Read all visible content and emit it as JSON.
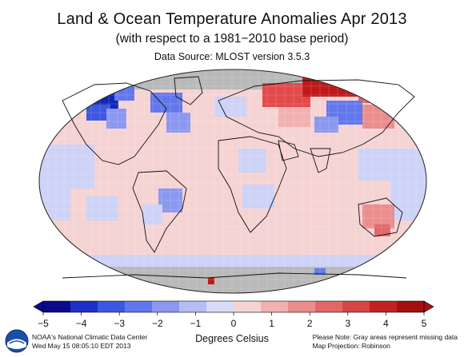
{
  "title": "Land & Ocean Temperature Anomalies Apr 2013",
  "subtitle": "(with respect to a 1981−2010 base period)",
  "source": "Data Source: MLOST version 3.5.3",
  "colorbar": {
    "ticks": [
      "−5",
      "−4",
      "−3",
      "−2",
      "−1",
      "0",
      "1",
      "2",
      "3",
      "4",
      "5"
    ],
    "axis_label": "Degrees Celsius",
    "colors": [
      "#0a0a8a",
      "#1f2fc8",
      "#3d57e0",
      "#6377ec",
      "#8b98f0",
      "#b6bdf4",
      "#d8dcf8",
      "#f7d4d4",
      "#f2b0b0",
      "#eb8d8d",
      "#e26868",
      "#d64545",
      "#c42222",
      "#a50f0f"
    ]
  },
  "footer": {
    "org": "NOAA's National Climatic Data Center",
    "date": "Wed May 15 08:05:10 EDT 2013",
    "note": "Please Note: Gray areas represent missing data",
    "projection": "Map Projection: Robinson"
  },
  "logo_text": "NOAA",
  "palette": {
    "missing": "#b9b9b9",
    "pink": "#f5d3d3",
    "lightblue": "#cdd3f7",
    "blue": "#7f8ff0",
    "darkblue": "#1428b8",
    "red": "#e24a4a",
    "darkred": "#c01818",
    "coast": "#111111"
  },
  "icon": "noaa-logo-icon"
}
